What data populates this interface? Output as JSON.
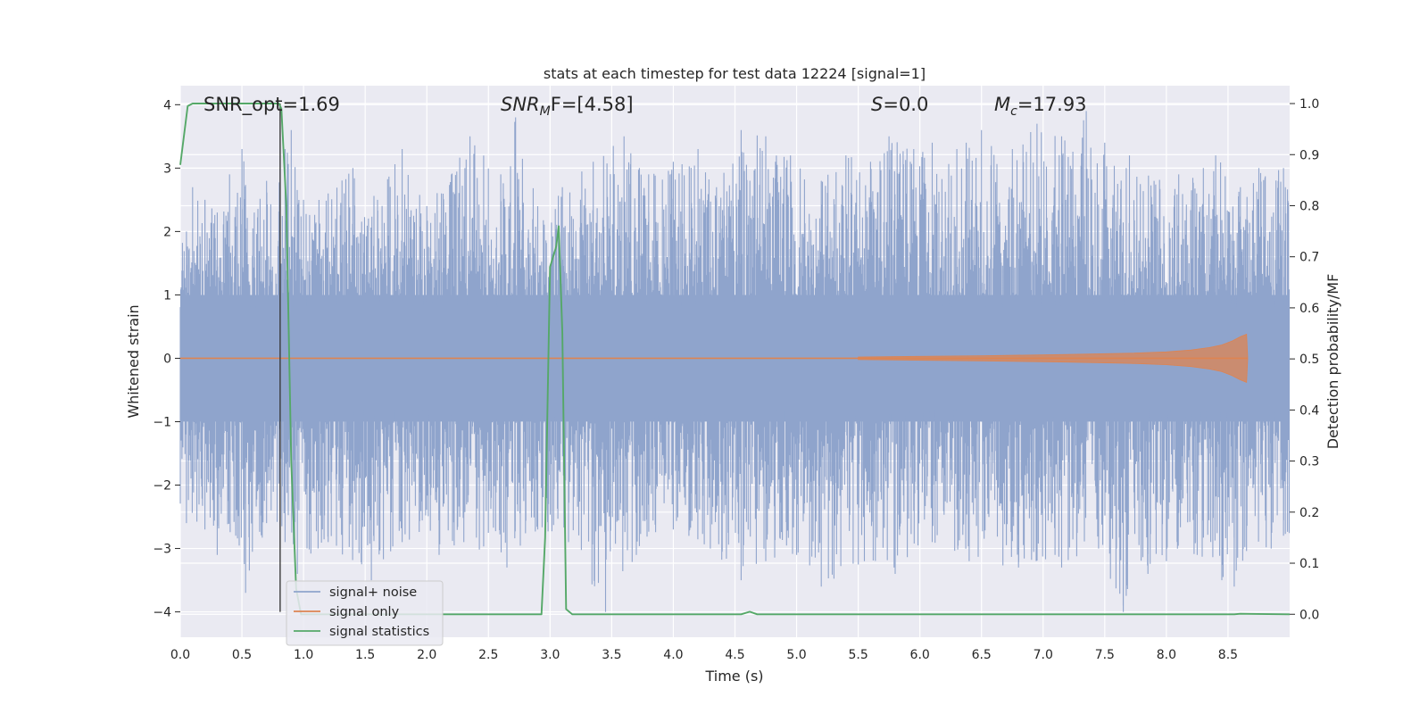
{
  "chart_data": {
    "type": "line",
    "title": "stats at each timestep for test data 12224 [signal=1]",
    "xlabel": "Time (s)",
    "ylabel_left": "Whitened strain",
    "ylabel_right": "Detection probability/MF",
    "xlim": [
      0.0,
      9.0
    ],
    "ylim_left": [
      -4.4,
      4.3
    ],
    "ylim_right": [
      -0.045,
      1.035
    ],
    "x_ticks": [
      "0.0",
      "0.5",
      "1.0",
      "1.5",
      "2.0",
      "2.5",
      "3.0",
      "3.5",
      "4.0",
      "4.5",
      "5.0",
      "5.5",
      "6.0",
      "6.5",
      "7.0",
      "7.5",
      "8.0",
      "8.5"
    ],
    "y_left_ticks": [
      "4",
      "3",
      "2",
      "1",
      "0",
      "−1",
      "−2",
      "−3",
      "−4"
    ],
    "y_right_ticks": [
      "1.0",
      "0.9",
      "0.8",
      "0.7",
      "0.6",
      "0.5",
      "0.4",
      "0.3",
      "0.2",
      "0.1",
      "0.0"
    ],
    "grid": true,
    "legend_position": "lower-left",
    "vertical_marker_x": 0.81,
    "annotations": {
      "snr_opt": "SNR_opt=1.69",
      "snr_mf_sym": "SNR",
      "snr_mf_sub": "M",
      "snr_mf_rest": "F=[4.58]",
      "s_sym": "S",
      "s_rest": "=0.0",
      "mc_sym": "M",
      "mc_sub": "c",
      "mc_rest": "=17.93"
    },
    "series": [
      {
        "name": "signal+ noise",
        "color": "#8fa4cc",
        "axis": "left",
        "description_values": "noise-like whitened strain, roughly within [-4, 4]",
        "upper_envelope": [
          [
            0.05,
            2.0
          ],
          [
            0.1,
            2.7
          ],
          [
            0.2,
            2.5
          ],
          [
            0.3,
            2.3
          ],
          [
            0.4,
            2.9
          ],
          [
            0.5,
            3.3
          ],
          [
            0.6,
            2.3
          ],
          [
            0.7,
            2.8
          ],
          [
            0.85,
            3.3
          ],
          [
            0.9,
            3.6
          ],
          [
            1.0,
            2.5
          ],
          [
            1.2,
            2.6
          ],
          [
            1.4,
            3.0
          ],
          [
            1.6,
            2.5
          ],
          [
            1.8,
            3.3
          ],
          [
            2.0,
            2.4
          ],
          [
            2.2,
            2.9
          ],
          [
            2.35,
            3.5
          ],
          [
            2.6,
            2.9
          ],
          [
            2.72,
            3.8
          ],
          [
            2.9,
            2.4
          ],
          [
            3.1,
            2.7
          ],
          [
            3.35,
            3.1
          ],
          [
            3.6,
            3.5
          ],
          [
            3.8,
            2.9
          ],
          [
            4.0,
            3.1
          ],
          [
            4.2,
            3.3
          ],
          [
            4.35,
            2.7
          ],
          [
            4.55,
            3.6
          ],
          [
            4.75,
            3.5
          ],
          [
            4.95,
            3.2
          ],
          [
            5.2,
            2.8
          ],
          [
            5.4,
            3.2
          ],
          [
            5.6,
            3.1
          ],
          [
            5.75,
            3.5
          ],
          [
            5.95,
            3.3
          ],
          [
            6.1,
            3.4
          ],
          [
            6.3,
            3.3
          ],
          [
            6.5,
            3.6
          ],
          [
            6.75,
            3.3
          ],
          [
            6.95,
            3.7
          ],
          [
            7.15,
            3.5
          ],
          [
            7.35,
            3.9
          ],
          [
            7.5,
            3.4
          ],
          [
            7.7,
            3.2
          ],
          [
            7.9,
            2.8
          ],
          [
            8.1,
            2.9
          ],
          [
            8.3,
            3.0
          ],
          [
            8.4,
            3.2
          ],
          [
            8.6,
            2.7
          ],
          [
            8.75,
            3.0
          ],
          [
            8.95,
            3.0
          ]
        ],
        "lower_envelope": [
          [
            0.05,
            -2.6
          ],
          [
            0.2,
            -2.7
          ],
          [
            0.3,
            -3.1
          ],
          [
            0.45,
            -2.8
          ],
          [
            0.53,
            -3.7
          ],
          [
            0.7,
            -2.6
          ],
          [
            0.85,
            -2.9
          ],
          [
            0.95,
            -3.4
          ],
          [
            1.2,
            -2.9
          ],
          [
            1.55,
            -3.5
          ],
          [
            1.8,
            -2.9
          ],
          [
            2.1,
            -3.1
          ],
          [
            2.3,
            -2.9
          ],
          [
            2.65,
            -3.3
          ],
          [
            2.9,
            -2.7
          ],
          [
            3.15,
            -2.9
          ],
          [
            3.45,
            -4.0
          ],
          [
            3.7,
            -3.1
          ],
          [
            4.0,
            -2.7
          ],
          [
            4.3,
            -3.0
          ],
          [
            4.55,
            -3.5
          ],
          [
            4.75,
            -3.2
          ],
          [
            5.0,
            -3.1
          ],
          [
            5.2,
            -3.6
          ],
          [
            5.55,
            -3.2
          ],
          [
            5.8,
            -3.4
          ],
          [
            6.1,
            -2.9
          ],
          [
            6.4,
            -3.2
          ],
          [
            6.8,
            -3.3
          ],
          [
            7.15,
            -3.3
          ],
          [
            7.45,
            -3.0
          ],
          [
            7.65,
            -4.0
          ],
          [
            7.85,
            -3.4
          ],
          [
            8.0,
            -3.2
          ],
          [
            8.25,
            -3.1
          ],
          [
            8.45,
            -3.5
          ],
          [
            8.55,
            -3.6
          ],
          [
            8.85,
            -3.0
          ],
          [
            8.95,
            -2.8
          ]
        ]
      },
      {
        "name": "signal only",
        "color": "#dd8452",
        "axis": "left",
        "description_values": "chirp amplitude envelope growing toward merger near t=8.65 s",
        "amplitude_envelope": [
          [
            5.5,
            0.02
          ],
          [
            6.5,
            0.04
          ],
          [
            7.2,
            0.06
          ],
          [
            7.7,
            0.08
          ],
          [
            8.0,
            0.1
          ],
          [
            8.2,
            0.13
          ],
          [
            8.35,
            0.17
          ],
          [
            8.45,
            0.21
          ],
          [
            8.53,
            0.27
          ],
          [
            8.6,
            0.34
          ],
          [
            8.65,
            0.38
          ],
          [
            8.66,
            0.0
          ]
        ]
      },
      {
        "name": "signal statistics",
        "color": "#55a868",
        "axis": "right",
        "points": [
          [
            0.0,
            0.88
          ],
          [
            0.06,
            0.995
          ],
          [
            0.1,
            1.0
          ],
          [
            0.8,
            1.0
          ],
          [
            0.82,
            0.99
          ],
          [
            0.86,
            0.8
          ],
          [
            0.9,
            0.3
          ],
          [
            0.94,
            0.05
          ],
          [
            0.98,
            0.0
          ],
          [
            2.93,
            0.0
          ],
          [
            2.96,
            0.15
          ],
          [
            3.0,
            0.68
          ],
          [
            3.05,
            0.72
          ],
          [
            3.07,
            0.76
          ],
          [
            3.1,
            0.55
          ],
          [
            3.13,
            0.01
          ],
          [
            3.18,
            0.0
          ],
          [
            4.55,
            0.0
          ],
          [
            4.62,
            0.005
          ],
          [
            4.68,
            0.0
          ],
          [
            8.55,
            0.0
          ],
          [
            8.6,
            0.001
          ],
          [
            9.0,
            0.0
          ]
        ]
      }
    ]
  }
}
